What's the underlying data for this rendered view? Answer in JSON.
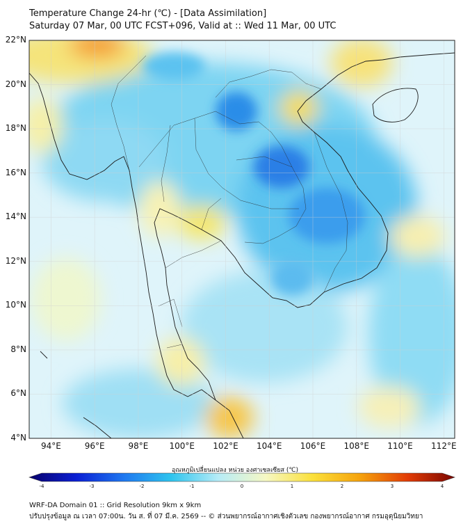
{
  "title": {
    "line1": "Temperature Change 24-hr (℃) - [Data Assimilation]",
    "line2": "Saturday 07 Mar, 00 UTC FCST+096, Valid at :: Wed 11 Mar, 00 UTC"
  },
  "map": {
    "lat_range": [
      4,
      22
    ],
    "lon_range": [
      93,
      112.5
    ],
    "lat_ticks": [
      "22°N",
      "20°N",
      "18°N",
      "16°N",
      "14°N",
      "12°N",
      "10°N",
      "8°N",
      "6°N",
      "4°N"
    ],
    "lon_ticks": [
      "94°E",
      "96°E",
      "98°E",
      "100°E",
      "102°E",
      "104°E",
      "106°E",
      "108°E",
      "110°E",
      "112°E"
    ],
    "land_color": "#bfe6f5",
    "ocean_color": "#dff4fa"
  },
  "colorbar": {
    "label": "อุณหภูมิเปลี่ยนแปลง หน่วย องศาเซลเซียส (℃)",
    "ticks": [
      "-4",
      "-3",
      "-2",
      "-1",
      "0",
      "1",
      "2",
      "3",
      "4"
    ],
    "min": -4,
    "max": 4,
    "colors": [
      "#08006b",
      "#0a1fd4",
      "#1f78f0",
      "#2ec4ee",
      "#b6ecf7",
      "#f6f8c4",
      "#fbe03a",
      "#f5a20c",
      "#e23c06",
      "#7a0600"
    ]
  },
  "footer": {
    "line1": "WRF-DA Domain 01 :: Grid Resolution 9km x 9km",
    "line2": "ปรับปรุงข้อมูล ณ เวลา 07:00น. วัน ส. ที่ 07 มี.ค. 2569 -- © ส่วนพยากรณ์อากาศเชิงตัวเลข กองพยากรณ์อากาศ กรมอุตุนิยมวิทยา"
  }
}
